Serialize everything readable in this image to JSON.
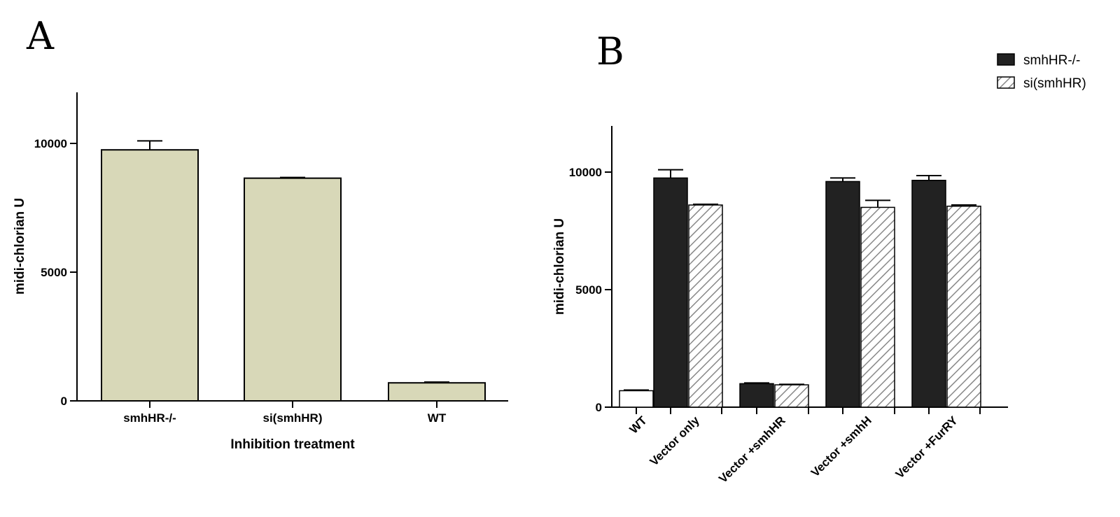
{
  "chart_data": [
    {
      "panel": "A",
      "type": "bar",
      "categories": [
        "smhHR-/-",
        "si(smhHR)",
        "WT"
      ],
      "values": [
        9750,
        8650,
        700
      ],
      "errors": [
        350,
        30,
        30
      ],
      "xlabel": "Inhibition treatment",
      "ylabel": "midi-chlorian U",
      "ylim": [
        0,
        12000
      ],
      "yticks": [
        0,
        5000,
        10000
      ],
      "bar_color": "#d8d8b8",
      "grid": false
    },
    {
      "panel": "B",
      "type": "bar",
      "categories": [
        "WT",
        "Vector only",
        "Vector +smhHR",
        "Vector +smhH",
        "Vector +FurRY"
      ],
      "ylabel": "midi-chlorian U",
      "ylim": [
        0,
        12000
      ],
      "yticks": [
        0,
        5000,
        10000
      ],
      "wt": {
        "value": 700,
        "error": 30
      },
      "series": [
        {
          "name": "smhHR-/-",
          "values": [
            null,
            9750,
            1000,
            9600,
            9650
          ],
          "errors": [
            null,
            350,
            30,
            150,
            200
          ],
          "color": "#222222",
          "pattern": "solid"
        },
        {
          "name": "si(smhHR)",
          "values": [
            null,
            8600,
            950,
            8500,
            8550
          ],
          "errors": [
            null,
            30,
            20,
            300,
            50
          ],
          "color": "#888888",
          "pattern": "hatch"
        }
      ],
      "legend": "top-right",
      "grid": false
    }
  ]
}
